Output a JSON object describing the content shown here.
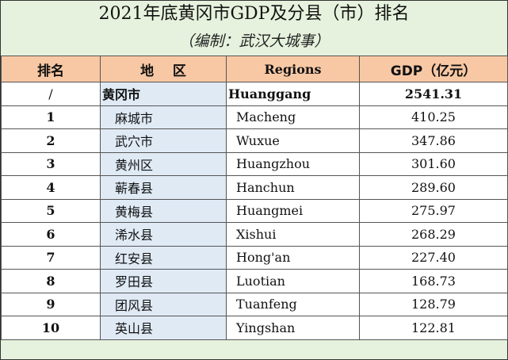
{
  "title": "2021年底黄冈市GDP及分县（市）排名",
  "subtitle": "（编制：武汉大城事）",
  "headers": {
    "rank": "排名",
    "area": "地    区",
    "regions": "Regions",
    "gdp": "GDP（亿元）"
  },
  "city_row": {
    "rank": "/",
    "area": "黄冈市",
    "region": "Huanggang",
    "gdp": "2541.31"
  },
  "rows": [
    {
      "rank": "1",
      "area": "麻城市",
      "region": "Macheng",
      "gdp": "410.25"
    },
    {
      "rank": "2",
      "area": "武穴市",
      "region": "Wuxue",
      "gdp": "347.86"
    },
    {
      "rank": "3",
      "area": "黄州区",
      "region": "Huangzhou",
      "gdp": "301.60"
    },
    {
      "rank": "4",
      "area": "蕲春县",
      "region": "Hanchun",
      "gdp": "289.60"
    },
    {
      "rank": "5",
      "area": "黄梅县",
      "region": "Huangmei",
      "gdp": "275.97"
    },
    {
      "rank": "6",
      "area": "浠水县",
      "region": "Xishui",
      "gdp": "268.29"
    },
    {
      "rank": "7",
      "area": "红安县",
      "region": "Hong'an",
      "gdp": "227.40"
    },
    {
      "rank": "8",
      "area": "罗田县",
      "region": "Luotian",
      "gdp": "168.73"
    },
    {
      "rank": "9",
      "area": "团风县",
      "region": "Tuanfeng",
      "gdp": "128.79"
    },
    {
      "rank": "10",
      "area": "英山县",
      "region": "Yingshan",
      "gdp": "122.81"
    }
  ]
}
